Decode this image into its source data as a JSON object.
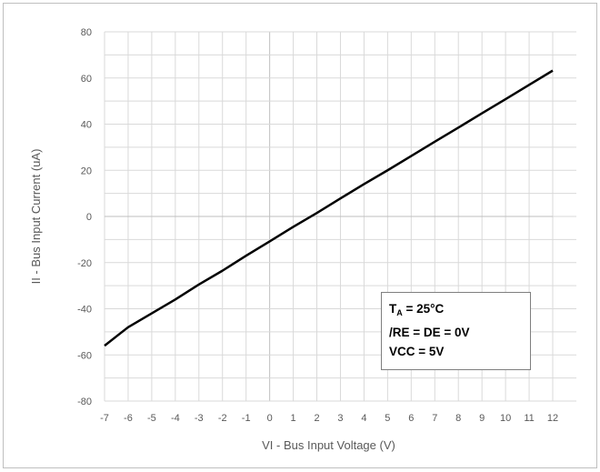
{
  "chart_data": {
    "type": "line",
    "xlabel": "VI - Bus Input Voltage (V)",
    "ylabel": "II - Bus Input Current (uA)",
    "xlim": [
      -7,
      12
    ],
    "ylim": [
      -80,
      80
    ],
    "xticks": [
      -7,
      -6,
      -5,
      -4,
      -3,
      -2,
      -1,
      0,
      1,
      2,
      3,
      4,
      5,
      6,
      7,
      8,
      9,
      10,
      11,
      12
    ],
    "yticks": [
      -80,
      -60,
      -40,
      -20,
      0,
      20,
      40,
      60,
      80
    ],
    "grid": true,
    "series": [
      {
        "color": "#000000",
        "x": [
          -7,
          -6,
          -5,
          -4,
          -3,
          -2,
          -1,
          0,
          1,
          2,
          3,
          4,
          5,
          6,
          7,
          8,
          9,
          10,
          11,
          12
        ],
        "y": [
          -56,
          -48,
          -42,
          -36,
          -29.5,
          -23.5,
          -17,
          -10.8,
          -4.5,
          1.5,
          7.8,
          14,
          20,
          26.2,
          32.4,
          38.5,
          44.7,
          50.8,
          57,
          63.2
        ]
      }
    ],
    "annotation": {
      "ta_label": "T",
      "ta_sub": "A",
      "ta_value": " = 25°C",
      "line2": "/RE = DE = 0V",
      "line3": "VCC = 5V"
    }
  }
}
